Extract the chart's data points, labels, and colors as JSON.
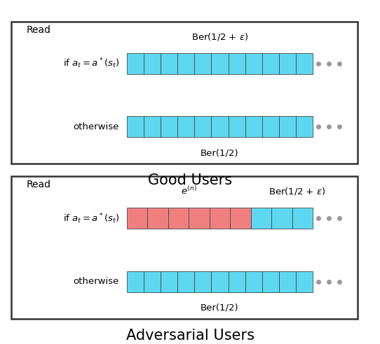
{
  "bg_color": "#ffffff",
  "box_border_color": "#333333",
  "cyan_color": "#5DD8F0",
  "red_color": "#F08080",
  "dot_color": "#999999",
  "cell_border_color": "#444444",
  "good_title": "Good Users",
  "adv_title": "Adversarial Users",
  "read_label": "Read",
  "good_row1_label": "if $a_t = a^*(s_t)$",
  "good_row2_label": "otherwise",
  "good_row1_annotation": "Ber(1/2 + $\\epsilon$)",
  "good_row2_annotation": "Ber(1/2)",
  "adv_row1_label": "if $a_t = a^*(s_t)$",
  "adv_row2_label": "otherwise",
  "adv_row1_annotation_e": "$e^{(n)}$",
  "adv_row1_annotation_ber": "Ber(1/2 + $\\epsilon$)",
  "adv_row2_annotation": "Ber(1/2)",
  "n_cells_good_row1": 11,
  "n_cells_good_row2": 11,
  "n_cells_red": 6,
  "n_cells_cyan_after_red": 3,
  "n_cells_adv_row2": 11,
  "font_size_label": 9.5,
  "font_size_annotation": 9.5,
  "font_size_title": 15,
  "font_size_read": 10
}
